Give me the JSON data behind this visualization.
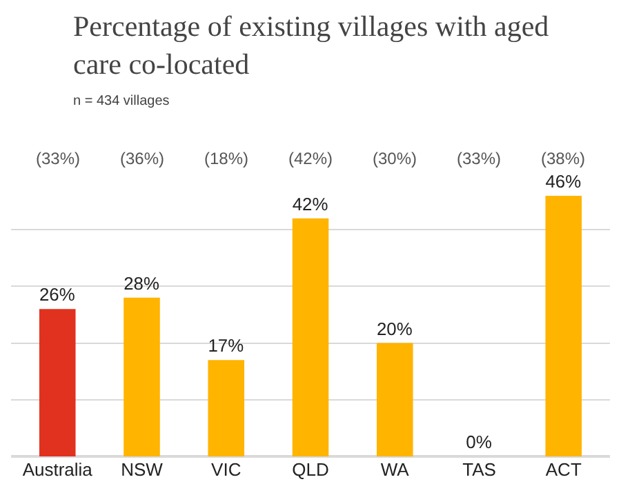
{
  "chart_data": {
    "type": "bar",
    "title": "Percentage of existing villages with aged care co-located",
    "subtitle": "n = 434 villages",
    "categories": [
      "Australia",
      "NSW",
      "VIC",
      "QLD",
      "WA",
      "TAS",
      "ACT"
    ],
    "values": [
      26,
      28,
      17,
      42,
      20,
      0,
      46
    ],
    "value_labels": [
      "26%",
      "28%",
      "17%",
      "42%",
      "20%",
      "0%",
      "46%"
    ],
    "colors": [
      "#e0321e",
      "#ffb400",
      "#ffb400",
      "#ffb400",
      "#ffb400",
      "#ffb400",
      "#ffb400"
    ],
    "grid": "y",
    "tick_labels": "x",
    "annotations": [
      "(33%)",
      "(36%)",
      "(18%)",
      "(42%)",
      "(30%)",
      "(33%)",
      "(38%)"
    ]
  }
}
